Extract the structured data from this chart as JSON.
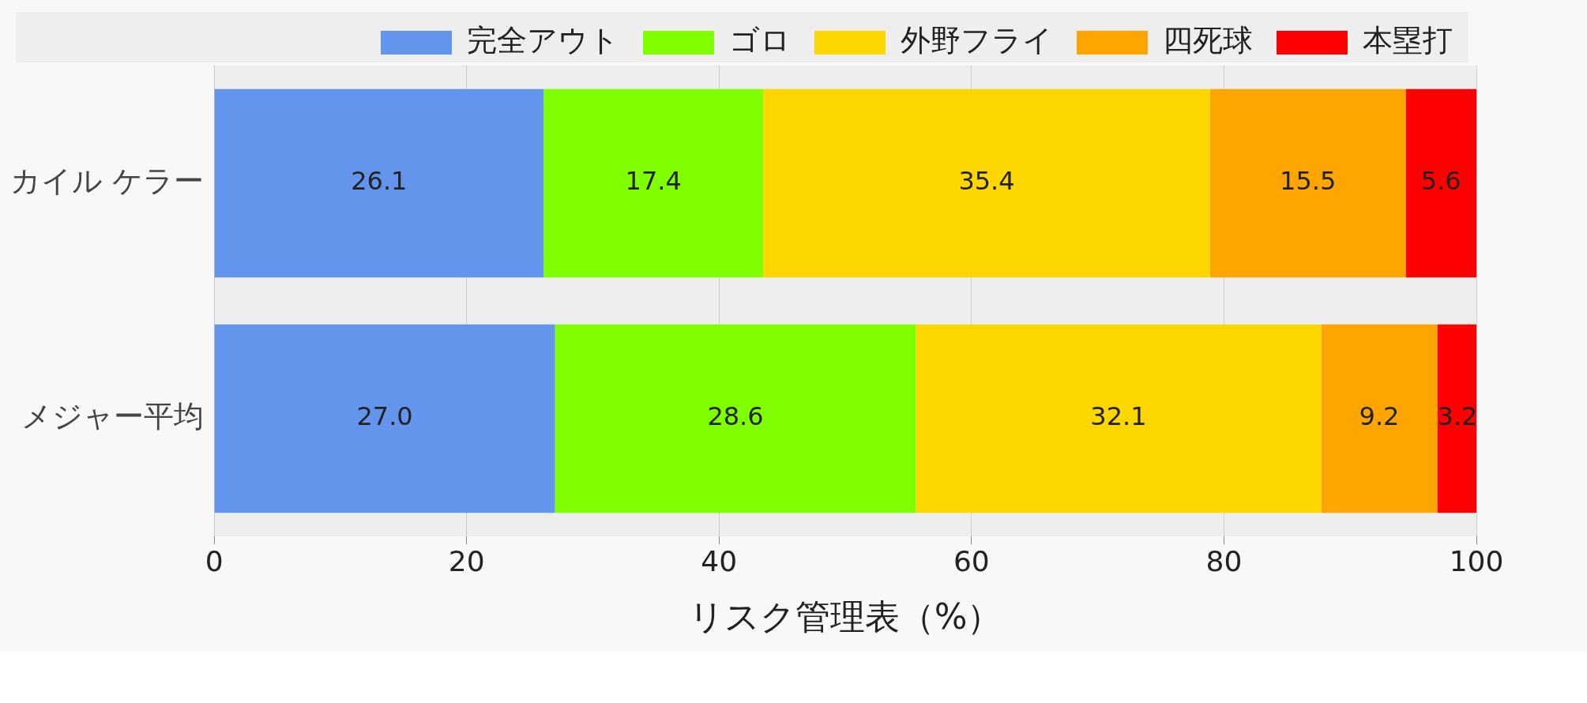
{
  "chart_data": {
    "type": "bar",
    "orientation": "horizontal",
    "stacked": true,
    "xlabel": "リスク管理表（%）",
    "categories": [
      "カイル ケラー",
      "メジャー平均"
    ],
    "series": [
      {
        "name": "完全アウト",
        "color": "#6495ed",
        "values": [
          26.1,
          27.0
        ],
        "value_labels": [
          "26.1",
          "27.0"
        ]
      },
      {
        "name": "ゴロ",
        "color": "#7fff00",
        "values": [
          17.4,
          28.6
        ],
        "value_labels": [
          "17.4",
          "28.6"
        ]
      },
      {
        "name": "外野フライ",
        "color": "#ffd700",
        "values": [
          35.4,
          32.1
        ],
        "value_labels": [
          "35.4",
          "32.1"
        ]
      },
      {
        "name": "四死球",
        "color": "#ffa500",
        "values": [
          15.5,
          9.2
        ],
        "value_labels": [
          "15.5",
          "9.2"
        ]
      },
      {
        "name": "本塁打",
        "color": "#ff0000",
        "values": [
          5.6,
          3.2
        ],
        "value_labels": [
          "5.6",
          "3.2"
        ]
      }
    ],
    "xlim": [
      0,
      100
    ],
    "xticks": [
      0,
      20,
      40,
      60,
      80,
      100
    ],
    "grid": "x",
    "legend": "top"
  }
}
